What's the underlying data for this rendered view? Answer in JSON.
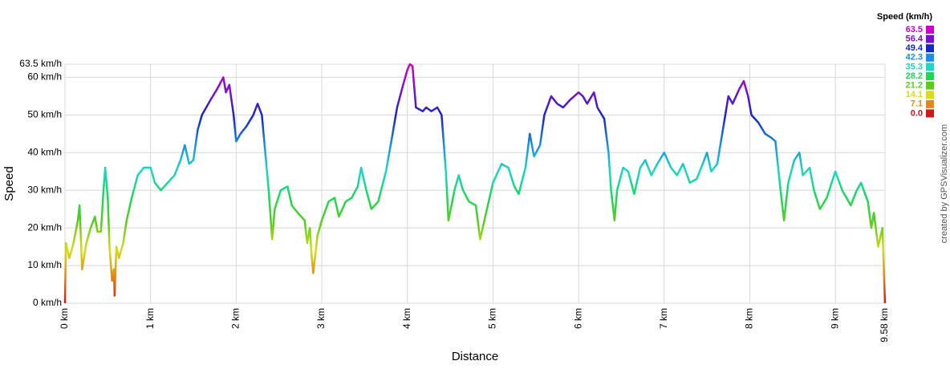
{
  "chart_data": {
    "type": "line",
    "y_label": "Speed",
    "x_label": "Distance",
    "credit": "created by GPSVisualizer.com",
    "xlim": [
      0,
      9.58
    ],
    "ylim": [
      0,
      63.5
    ],
    "xticks": [
      {
        "value": 0,
        "label": "0 km"
      },
      {
        "value": 1,
        "label": "1 km"
      },
      {
        "value": 2,
        "label": "2 km"
      },
      {
        "value": 3,
        "label": "3 km"
      },
      {
        "value": 4,
        "label": "4 km"
      },
      {
        "value": 5,
        "label": "5 km"
      },
      {
        "value": 6,
        "label": "6 km"
      },
      {
        "value": 7,
        "label": "7 km"
      },
      {
        "value": 8,
        "label": "8 km"
      },
      {
        "value": 9,
        "label": "9 km"
      },
      {
        "value": 9.58,
        "label": "9.58 km"
      }
    ],
    "yticks": [
      {
        "value": 0,
        "label": "0 km/h"
      },
      {
        "value": 10,
        "label": "10 km/h"
      },
      {
        "value": 20,
        "label": "20 km/h"
      },
      {
        "value": 30,
        "label": "30 km/h"
      },
      {
        "value": 40,
        "label": "40 km/h"
      },
      {
        "value": 50,
        "label": "50 km/h"
      },
      {
        "value": 60,
        "label": "60 km/h"
      },
      {
        "value": 63.5,
        "label": "63.5 km/h"
      }
    ],
    "grid": true,
    "color_scale": {
      "title": "Speed (km/h)",
      "stops": [
        {
          "value": 63.5,
          "color": "#cc00cc"
        },
        {
          "value": 56.4,
          "color": "#7a10cc"
        },
        {
          "value": 49.4,
          "color": "#1428c8"
        },
        {
          "value": 42.3,
          "color": "#1a8ee0"
        },
        {
          "value": 35.3,
          "color": "#1ad8c4"
        },
        {
          "value": 28.2,
          "color": "#1ad85a"
        },
        {
          "value": 21.2,
          "color": "#5ccc1a"
        },
        {
          "value": 14.1,
          "color": "#d8dc1a"
        },
        {
          "value": 7.1,
          "color": "#e0891a"
        },
        {
          "value": 0,
          "label": "0.0",
          "color": "#cc1a1a"
        }
      ]
    },
    "x": [
      0,
      0.01,
      0.05,
      0.1,
      0.15,
      0.17,
      0.2,
      0.25,
      0.3,
      0.35,
      0.38,
      0.42,
      0.45,
      0.47,
      0.5,
      0.52,
      0.55,
      0.57,
      0.58,
      0.6,
      0.63,
      0.68,
      0.72,
      0.78,
      0.85,
      0.92,
      1.0,
      1.05,
      1.12,
      1.2,
      1.28,
      1.35,
      1.4,
      1.45,
      1.5,
      1.55,
      1.6,
      1.7,
      1.78,
      1.85,
      1.88,
      1.92,
      1.97,
      2.0,
      2.05,
      2.12,
      2.2,
      2.25,
      2.3,
      2.38,
      2.42,
      2.45,
      2.52,
      2.6,
      2.65,
      2.72,
      2.8,
      2.83,
      2.86,
      2.88,
      2.9,
      2.95,
      3.0,
      3.08,
      3.15,
      3.2,
      3.28,
      3.35,
      3.42,
      3.46,
      3.52,
      3.58,
      3.66,
      3.75,
      3.82,
      3.88,
      3.95,
      4.0,
      4.03,
      4.06,
      4.1,
      4.18,
      4.22,
      4.28,
      4.35,
      4.4,
      4.45,
      4.48,
      4.55,
      4.6,
      4.65,
      4.72,
      4.8,
      4.85,
      4.9,
      5.0,
      5.1,
      5.18,
      5.25,
      5.3,
      5.38,
      5.43,
      5.48,
      5.55,
      5.6,
      5.68,
      5.75,
      5.82,
      5.9,
      6.0,
      6.05,
      6.1,
      6.18,
      6.22,
      6.3,
      6.35,
      6.38,
      6.42,
      6.45,
      6.52,
      6.58,
      6.65,
      6.72,
      6.78,
      6.85,
      6.92,
      7.0,
      7.08,
      7.15,
      7.22,
      7.3,
      7.38,
      7.45,
      7.5,
      7.55,
      7.62,
      7.7,
      7.75,
      7.8,
      7.88,
      7.93,
      7.98,
      8.02,
      8.1,
      8.18,
      8.25,
      8.3,
      8.35,
      8.4,
      8.45,
      8.52,
      8.58,
      8.62,
      8.7,
      8.75,
      8.82,
      8.9,
      9.0,
      9.08,
      9.18,
      9.25,
      9.3,
      9.38,
      9.42,
      9.45,
      9.5,
      9.55,
      9.58
    ],
    "values": [
      0,
      16,
      12,
      16,
      22,
      26,
      9,
      16,
      20,
      23,
      19,
      19,
      30,
      36,
      28,
      15,
      6,
      9,
      2,
      15,
      12,
      16,
      22,
      28,
      34,
      36,
      36,
      32,
      30,
      32,
      34,
      38,
      42,
      37,
      38,
      46,
      50,
      54,
      57,
      60,
      56,
      58,
      50,
      43,
      45,
      47,
      50,
      53,
      50,
      30,
      17,
      25,
      30,
      31,
      26,
      24,
      22,
      16,
      20,
      13,
      8,
      18,
      22,
      27,
      28,
      23,
      27,
      28,
      31,
      36,
      30,
      25,
      27,
      35,
      44,
      52,
      58,
      62,
      63.5,
      63,
      52,
      51,
      52,
      51,
      52,
      50,
      35,
      22,
      30,
      34,
      30,
      27,
      26,
      17,
      22,
      32,
      37,
      36,
      31,
      29,
      36,
      45,
      39,
      42,
      50,
      55,
      53,
      52,
      54,
      56,
      55,
      53,
      56,
      52,
      49,
      40,
      30,
      22,
      30,
      36,
      35,
      29,
      36,
      38,
      34,
      37,
      40,
      36,
      34,
      37,
      32,
      33,
      37,
      40,
      35,
      37,
      48,
      55,
      53,
      57,
      59,
      55,
      50,
      48,
      45,
      44,
      43,
      32,
      22,
      32,
      38,
      40,
      34,
      36,
      30,
      25,
      28,
      35,
      30,
      26,
      30,
      32,
      27,
      20,
      24,
      15,
      20,
      0
    ]
  }
}
